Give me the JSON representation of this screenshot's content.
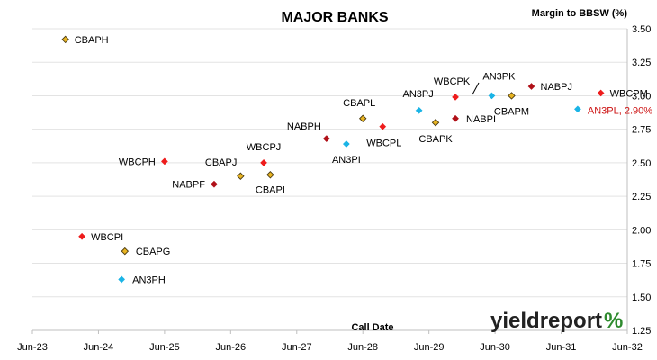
{
  "chart_data": {
    "type": "scatter",
    "title": "MAJOR BANKS",
    "ylabel": "Margin to BBSW (%)",
    "xlabel": "Call Date",
    "x_ticks": [
      "Jun-23",
      "Jun-24",
      "Jun-25",
      "Jun-26",
      "Jun-27",
      "Jun-28",
      "Jun-29",
      "Jun-30",
      "Jun-31",
      "Jun-32"
    ],
    "ylim": [
      1.25,
      3.5
    ],
    "y_ticks": [
      "1.25",
      "1.50",
      "1.75",
      "2.00",
      "2.25",
      "2.50",
      "2.75",
      "3.00",
      "3.25",
      "3.50"
    ],
    "y_axis_side": "right",
    "grid": "horizontal",
    "colors": {
      "red": "#ee1c1c",
      "dark-red": "#b01018",
      "gold": "#e8b422",
      "cyan": "#1ab4e6"
    },
    "points": [
      {
        "label": "CBAPH",
        "x": 2024.0,
        "y": 3.42,
        "color": "gold",
        "marker": "diamond-outline"
      },
      {
        "label": "WBCPI",
        "x": 2024.25,
        "y": 1.95,
        "color": "red",
        "marker": "diamond"
      },
      {
        "label": "CBAPG",
        "x": 2024.9,
        "y": 1.84,
        "color": "gold",
        "marker": "diamond-outline"
      },
      {
        "label": "AN3PH",
        "x": 2024.85,
        "y": 1.63,
        "color": "cyan",
        "marker": "diamond"
      },
      {
        "label": "WBCPH",
        "x": 2025.5,
        "y": 2.51,
        "color": "red",
        "marker": "diamond"
      },
      {
        "label": "NABPF",
        "x": 2026.25,
        "y": 2.34,
        "color": "dark-red",
        "marker": "diamond"
      },
      {
        "label": "CBAPJ",
        "x": 2026.65,
        "y": 2.4,
        "color": "gold",
        "marker": "diamond-outline"
      },
      {
        "label": "WBCPJ",
        "x": 2027.0,
        "y": 2.5,
        "color": "red",
        "marker": "diamond"
      },
      {
        "label": "CBAPI",
        "x": 2027.1,
        "y": 2.41,
        "color": "gold",
        "marker": "diamond-outline"
      },
      {
        "label": "NABPH",
        "x": 2027.95,
        "y": 2.68,
        "color": "dark-red",
        "marker": "diamond"
      },
      {
        "label": "AN3PI",
        "x": 2028.25,
        "y": 2.64,
        "color": "cyan",
        "marker": "diamond"
      },
      {
        "label": "CBAPL",
        "x": 2028.5,
        "y": 2.83,
        "color": "gold",
        "marker": "diamond-outline"
      },
      {
        "label": "WBCPL",
        "x": 2028.8,
        "y": 2.77,
        "color": "red",
        "marker": "diamond"
      },
      {
        "label": "AN3PJ",
        "x": 2029.35,
        "y": 2.89,
        "color": "cyan",
        "marker": "diamond"
      },
      {
        "label": "CBAPK",
        "x": 2029.6,
        "y": 2.8,
        "color": "gold",
        "marker": "diamond-outline"
      },
      {
        "label": "WBCPK",
        "x": 2029.9,
        "y": 2.99,
        "color": "red",
        "marker": "diamond"
      },
      {
        "label": "NABPI",
        "x": 2029.9,
        "y": 2.83,
        "color": "dark-red",
        "marker": "diamond"
      },
      {
        "label": "AN3PK",
        "x": 2030.45,
        "y": 3.0,
        "color": "cyan",
        "marker": "diamond"
      },
      {
        "label": "CBAPM",
        "x": 2030.75,
        "y": 3.0,
        "color": "gold",
        "marker": "diamond-outline"
      },
      {
        "label": "NABPJ",
        "x": 2031.05,
        "y": 3.07,
        "color": "dark-red",
        "marker": "diamond"
      },
      {
        "label": "AN3PL, 2.90%",
        "x": 2031.75,
        "y": 2.9,
        "color": "cyan",
        "marker": "diamond",
        "highlight": true
      },
      {
        "label": "WBCPM",
        "x": 2032.1,
        "y": 3.02,
        "color": "red",
        "marker": "diamond"
      }
    ]
  },
  "logo": {
    "text": "yieldreport",
    "symbol": "%"
  }
}
